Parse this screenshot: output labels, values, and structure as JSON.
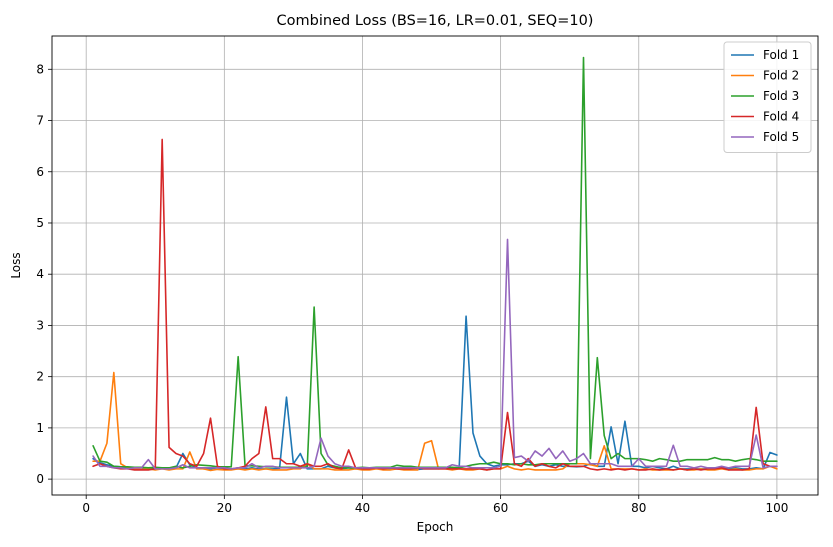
{
  "chart_data": {
    "type": "line",
    "title": "Combined Loss (BS=16, LR=0.01, SEQ=10)",
    "xlabel": "Epoch",
    "ylabel": "Loss",
    "xlim": [
      -4.95,
      105.95
    ],
    "ylim": [
      -0.31,
      8.65
    ],
    "xticks": [
      0,
      20,
      40,
      60,
      80,
      100
    ],
    "yticks": [
      0,
      1,
      2,
      3,
      4,
      5,
      6,
      7,
      8
    ],
    "grid": true,
    "legend_position": "top-right",
    "series": [
      {
        "name": "Fold 1",
        "color": "#1f77b4",
        "x": [
          1,
          2,
          3,
          4,
          5,
          6,
          7,
          8,
          9,
          10,
          11,
          12,
          13,
          14,
          15,
          16,
          17,
          18,
          19,
          20,
          21,
          22,
          23,
          24,
          25,
          26,
          27,
          28,
          29,
          30,
          31,
          32,
          33,
          34,
          35,
          36,
          37,
          38,
          39,
          40,
          41,
          42,
          43,
          44,
          45,
          46,
          47,
          48,
          49,
          50,
          51,
          52,
          53,
          54,
          55,
          56,
          57,
          58,
          59,
          60,
          61,
          62,
          63,
          64,
          65,
          66,
          67,
          68,
          69,
          70,
          71,
          72,
          73,
          74,
          75,
          76,
          77,
          78,
          79,
          80,
          81,
          82,
          83,
          84,
          85,
          86,
          87,
          88,
          89,
          90,
          91,
          92,
          93,
          94,
          95,
          96,
          97,
          98,
          99,
          100
        ],
        "y": [
          0.4,
          0.32,
          0.28,
          0.25,
          0.24,
          0.23,
          0.22,
          0.22,
          0.21,
          0.22,
          0.22,
          0.2,
          0.22,
          0.5,
          0.28,
          0.22,
          0.2,
          0.2,
          0.22,
          0.19,
          0.2,
          0.2,
          0.2,
          0.22,
          0.2,
          0.2,
          0.2,
          0.21,
          1.6,
          0.3,
          0.5,
          0.2,
          0.2,
          0.2,
          0.25,
          0.22,
          0.2,
          0.22,
          0.2,
          0.2,
          0.2,
          0.21,
          0.2,
          0.2,
          0.2,
          0.19,
          0.2,
          0.19,
          0.2,
          0.2,
          0.2,
          0.21,
          0.2,
          0.22,
          3.18,
          0.9,
          0.45,
          0.3,
          0.25,
          0.28,
          0.28,
          0.3,
          0.3,
          0.35,
          0.25,
          0.28,
          0.25,
          0.28,
          0.25,
          0.25,
          0.24,
          0.25,
          0.3,
          0.25,
          0.25,
          1.02,
          0.3,
          1.13,
          0.25,
          0.25,
          0.22,
          0.25,
          0.22,
          0.2,
          0.25,
          0.2,
          0.2,
          0.2,
          0.2,
          0.2,
          0.22,
          0.22,
          0.2,
          0.22,
          0.2,
          0.2,
          0.22,
          0.2,
          0.52,
          0.47
        ]
      },
      {
        "name": "Fold 2",
        "color": "#ff7f0e",
        "x": [
          1,
          2,
          3,
          4,
          5,
          6,
          7,
          8,
          9,
          10,
          11,
          12,
          13,
          14,
          15,
          16,
          17,
          18,
          19,
          20,
          21,
          22,
          23,
          24,
          25,
          26,
          27,
          28,
          29,
          30,
          31,
          32,
          33,
          34,
          35,
          36,
          37,
          38,
          39,
          40,
          41,
          42,
          43,
          44,
          45,
          46,
          47,
          48,
          49,
          50,
          51,
          52,
          53,
          54,
          55,
          56,
          57,
          58,
          59,
          60,
          61,
          62,
          63,
          64,
          65,
          66,
          67,
          68,
          69,
          70,
          71,
          72,
          73,
          74,
          75,
          76,
          77,
          78,
          79,
          80,
          81,
          82,
          83,
          84,
          85,
          86,
          87,
          88,
          89,
          90,
          91,
          92,
          93,
          94,
          95,
          96,
          97,
          98,
          99,
          100
        ],
        "y": [
          0.35,
          0.35,
          0.7,
          2.08,
          0.3,
          0.22,
          0.2,
          0.19,
          0.2,
          0.18,
          0.2,
          0.18,
          0.2,
          0.2,
          0.53,
          0.2,
          0.2,
          0.17,
          0.19,
          0.18,
          0.18,
          0.2,
          0.18,
          0.2,
          0.18,
          0.2,
          0.18,
          0.18,
          0.18,
          0.2,
          0.2,
          0.3,
          0.2,
          0.2,
          0.2,
          0.18,
          0.18,
          0.18,
          0.2,
          0.18,
          0.18,
          0.2,
          0.18,
          0.18,
          0.2,
          0.18,
          0.18,
          0.18,
          0.7,
          0.75,
          0.2,
          0.2,
          0.18,
          0.2,
          0.18,
          0.18,
          0.2,
          0.18,
          0.2,
          0.2,
          0.25,
          0.2,
          0.18,
          0.2,
          0.18,
          0.18,
          0.18,
          0.18,
          0.2,
          0.3,
          0.3,
          0.3,
          0.28,
          0.25,
          0.65,
          0.2,
          0.2,
          0.2,
          0.2,
          0.18,
          0.2,
          0.18,
          0.18,
          0.18,
          0.18,
          0.2,
          0.18,
          0.18,
          0.2,
          0.18,
          0.18,
          0.2,
          0.18,
          0.2,
          0.18,
          0.18,
          0.2,
          0.2,
          0.25,
          0.2
        ]
      },
      {
        "name": "Fold 3",
        "color": "#2ca02c",
        "x": [
          1,
          2,
          3,
          4,
          5,
          6,
          7,
          8,
          9,
          10,
          11,
          12,
          13,
          14,
          15,
          16,
          17,
          18,
          19,
          20,
          21,
          22,
          23,
          24,
          25,
          26,
          27,
          28,
          29,
          30,
          31,
          32,
          33,
          34,
          35,
          36,
          37,
          38,
          39,
          40,
          41,
          42,
          43,
          44,
          45,
          46,
          47,
          48,
          49,
          50,
          51,
          52,
          53,
          54,
          55,
          56,
          57,
          58,
          59,
          60,
          61,
          62,
          63,
          64,
          65,
          66,
          67,
          68,
          69,
          70,
          71,
          72,
          73,
          74,
          75,
          76,
          77,
          78,
          79,
          80,
          81,
          82,
          83,
          84,
          85,
          86,
          87,
          88,
          89,
          90,
          91,
          92,
          93,
          94,
          95,
          96,
          97,
          98,
          99,
          100
        ],
        "y": [
          0.65,
          0.35,
          0.33,
          0.25,
          0.24,
          0.24,
          0.23,
          0.23,
          0.22,
          0.23,
          0.22,
          0.22,
          0.25,
          0.22,
          0.25,
          0.28,
          0.27,
          0.26,
          0.24,
          0.24,
          0.24,
          2.39,
          0.26,
          0.26,
          0.25,
          0.24,
          0.24,
          0.23,
          0.23,
          0.23,
          0.23,
          0.23,
          3.36,
          0.5,
          0.28,
          0.25,
          0.22,
          0.22,
          0.22,
          0.23,
          0.22,
          0.23,
          0.23,
          0.23,
          0.27,
          0.25,
          0.25,
          0.23,
          0.23,
          0.23,
          0.23,
          0.23,
          0.23,
          0.22,
          0.25,
          0.28,
          0.3,
          0.3,
          0.33,
          0.3,
          0.3,
          0.28,
          0.3,
          0.28,
          0.28,
          0.3,
          0.3,
          0.3,
          0.3,
          0.3,
          0.3,
          8.23,
          0.4,
          2.37,
          0.85,
          0.4,
          0.5,
          0.4,
          0.4,
          0.4,
          0.38,
          0.35,
          0.4,
          0.38,
          0.35,
          0.35,
          0.38,
          0.38,
          0.38,
          0.38,
          0.42,
          0.38,
          0.38,
          0.35,
          0.38,
          0.4,
          0.38,
          0.35,
          0.35,
          0.35
        ]
      },
      {
        "name": "Fold 4",
        "color": "#d62728",
        "x": [
          1,
          2,
          3,
          4,
          5,
          6,
          7,
          8,
          9,
          10,
          11,
          12,
          13,
          14,
          15,
          16,
          17,
          18,
          19,
          20,
          21,
          22,
          23,
          24,
          25,
          26,
          27,
          28,
          29,
          30,
          31,
          32,
          33,
          34,
          35,
          36,
          37,
          38,
          39,
          40,
          41,
          42,
          43,
          44,
          45,
          46,
          47,
          48,
          49,
          50,
          51,
          52,
          53,
          54,
          55,
          56,
          57,
          58,
          59,
          60,
          61,
          62,
          63,
          64,
          65,
          66,
          67,
          68,
          69,
          70,
          71,
          72,
          73,
          74,
          75,
          76,
          77,
          78,
          79,
          80,
          81,
          82,
          83,
          84,
          85,
          86,
          87,
          88,
          89,
          90,
          91,
          92,
          93,
          94,
          95,
          96,
          97,
          98,
          99,
          100
        ],
        "y": [
          0.25,
          0.3,
          0.25,
          0.22,
          0.2,
          0.2,
          0.18,
          0.18,
          0.18,
          0.2,
          6.63,
          0.62,
          0.5,
          0.45,
          0.3,
          0.25,
          0.5,
          1.19,
          0.25,
          0.2,
          0.2,
          0.22,
          0.25,
          0.4,
          0.5,
          1.41,
          0.4,
          0.4,
          0.3,
          0.3,
          0.25,
          0.3,
          0.25,
          0.25,
          0.3,
          0.22,
          0.2,
          0.57,
          0.22,
          0.2,
          0.2,
          0.22,
          0.2,
          0.22,
          0.2,
          0.2,
          0.2,
          0.22,
          0.2,
          0.2,
          0.2,
          0.2,
          0.2,
          0.2,
          0.2,
          0.2,
          0.2,
          0.18,
          0.2,
          0.2,
          1.3,
          0.3,
          0.25,
          0.4,
          0.25,
          0.3,
          0.25,
          0.22,
          0.3,
          0.25,
          0.25,
          0.25,
          0.2,
          0.18,
          0.2,
          0.18,
          0.2,
          0.18,
          0.2,
          0.18,
          0.18,
          0.2,
          0.18,
          0.2,
          0.18,
          0.2,
          0.18,
          0.2,
          0.18,
          0.2,
          0.2,
          0.22,
          0.18,
          0.18,
          0.18,
          0.2,
          1.4,
          0.3,
          0.25,
          0.25
        ]
      },
      {
        "name": "Fold 5",
        "color": "#9467bd",
        "x": [
          1,
          2,
          3,
          4,
          5,
          6,
          7,
          8,
          9,
          10,
          11,
          12,
          13,
          14,
          15,
          16,
          17,
          18,
          19,
          20,
          21,
          22,
          23,
          24,
          25,
          26,
          27,
          28,
          29,
          30,
          31,
          32,
          33,
          34,
          35,
          36,
          37,
          38,
          39,
          40,
          41,
          42,
          43,
          44,
          45,
          46,
          47,
          48,
          49,
          50,
          51,
          52,
          53,
          54,
          55,
          56,
          57,
          58,
          59,
          60,
          61,
          62,
          63,
          64,
          65,
          66,
          67,
          68,
          69,
          70,
          71,
          72,
          73,
          74,
          75,
          76,
          77,
          78,
          79,
          80,
          81,
          82,
          83,
          84,
          85,
          86,
          87,
          88,
          89,
          90,
          91,
          92,
          93,
          94,
          95,
          96,
          97,
          98,
          99,
          100
        ],
        "y": [
          0.45,
          0.25,
          0.25,
          0.22,
          0.22,
          0.2,
          0.22,
          0.22,
          0.38,
          0.2,
          0.2,
          0.2,
          0.22,
          0.28,
          0.22,
          0.22,
          0.22,
          0.22,
          0.22,
          0.22,
          0.2,
          0.22,
          0.22,
          0.3,
          0.22,
          0.25,
          0.25,
          0.22,
          0.22,
          0.22,
          0.22,
          0.22,
          0.25,
          0.8,
          0.45,
          0.3,
          0.25,
          0.25,
          0.22,
          0.22,
          0.22,
          0.22,
          0.22,
          0.22,
          0.22,
          0.22,
          0.22,
          0.22,
          0.22,
          0.22,
          0.22,
          0.22,
          0.28,
          0.25,
          0.25,
          0.22,
          0.22,
          0.22,
          0.22,
          0.25,
          4.68,
          0.42,
          0.45,
          0.35,
          0.55,
          0.45,
          0.6,
          0.4,
          0.55,
          0.35,
          0.4,
          0.5,
          0.3,
          0.3,
          0.3,
          0.3,
          0.25,
          0.25,
          0.25,
          0.4,
          0.25,
          0.25,
          0.25,
          0.25,
          0.66,
          0.25,
          0.25,
          0.22,
          0.25,
          0.22,
          0.22,
          0.25,
          0.22,
          0.25,
          0.25,
          0.25,
          0.86,
          0.22,
          0.25,
          0.25
        ]
      }
    ]
  }
}
